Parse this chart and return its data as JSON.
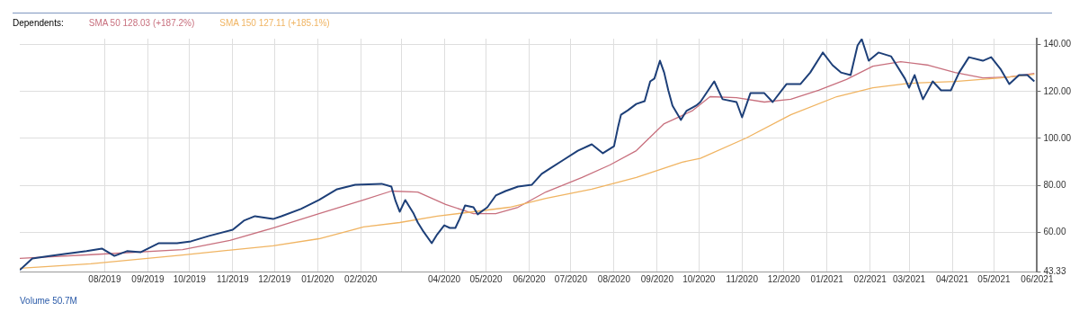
{
  "chart_data": {
    "type": "line",
    "legend": "top left",
    "grid": true,
    "marker": "none",
    "line_style": "solid",
    "xlim": [
      "2019-06-01",
      "2021-06-01"
    ],
    "xticks": [
      {
        "value": "2019-08-01",
        "label": "08/2019"
      },
      {
        "value": "2019-09-01",
        "label": "09/2019"
      },
      {
        "value": "2019-10-01",
        "label": "10/2019"
      },
      {
        "value": "2019-11-01",
        "label": "11/2019"
      },
      {
        "value": "2019-12-01",
        "label": "12/2019"
      },
      {
        "value": "2020-01-01",
        "label": "01/2020"
      },
      {
        "value": "2020-02-01",
        "label": "02/2020"
      },
      {
        "value": "2020-03-01",
        "label": null
      },
      {
        "value": "2020-04-01",
        "label": "04/2020"
      },
      {
        "value": "2020-05-01",
        "label": "05/2020"
      },
      {
        "value": "2020-06-01",
        "label": "06/2020"
      },
      {
        "value": "2020-07-01",
        "label": "07/2020"
      },
      {
        "value": "2020-08-01",
        "label": "08/2020"
      },
      {
        "value": "2020-09-01",
        "label": "09/2020"
      },
      {
        "value": "2020-10-01",
        "label": "10/2020"
      },
      {
        "value": "2020-11-01",
        "label": "11/2020"
      },
      {
        "value": "2020-12-01",
        "label": "12/2020"
      },
      {
        "value": "2021-01-01",
        "label": "01/2021"
      },
      {
        "value": "2021-02-01",
        "label": "02/2021"
      },
      {
        "value": "2021-03-01",
        "label": "03/2021"
      },
      {
        "value": "2021-04-01",
        "label": "04/2021"
      },
      {
        "value": "2021-05-01",
        "label": "05/2021"
      },
      {
        "value": "2021-06-01",
        "label": "06/2021"
      }
    ],
    "ylim": [
      43.33,
      142.5
    ],
    "yticks": [
      43.33,
      {
        "value": 60,
        "label": "60.00"
      },
      {
        "value": 80,
        "label": "80.00"
      },
      {
        "value": 100,
        "label": "100.00"
      },
      {
        "value": 120,
        "label": "120.00"
      },
      {
        "value": 140,
        "label": "140.00"
      }
    ],
    "annotations": [
      "Dependents:",
      "Volume 50.7M"
    ],
    "series": [
      {
        "name": "SMA 50 128.03 (+187.2%)",
        "color": "#c8707e",
        "x": [
          "2019-06-01",
          "2019-07-22",
          "2019-09-26",
          "2019-10-30",
          "2019-11-30",
          "2020-01-02",
          "2020-02-03",
          "2020-02-23",
          "2020-03-13",
          "2020-04-02",
          "2020-04-22",
          "2020-05-08",
          "2020-05-24",
          "2020-06-13",
          "2020-07-09",
          "2020-07-29",
          "2020-08-17",
          "2020-09-06",
          "2020-09-26",
          "2020-10-09",
          "2020-10-28",
          "2020-11-17",
          "2020-12-06",
          "2020-12-26",
          "2021-01-15",
          "2021-02-03",
          "2021-02-23",
          "2021-03-15",
          "2021-04-03",
          "2021-04-23",
          "2021-05-12",
          "2021-05-30"
        ],
        "values": [
          48.9,
          50.5,
          52.7,
          56.6,
          61.9,
          68,
          73.8,
          77.6,
          77.2,
          71.9,
          68,
          68,
          70.7,
          77.2,
          83.4,
          88.7,
          94.8,
          106.3,
          111.7,
          117.8,
          117.4,
          115.5,
          116.7,
          120.5,
          125.1,
          130.8,
          132.7,
          131.2,
          128.1,
          125.8,
          126.2,
          127.7
        ]
      },
      {
        "name": "SMA 150 127.11 (+185.1%)",
        "color": "#f0b462",
        "x": [
          "2019-06-01",
          "2019-07-22",
          "2019-09-26",
          "2019-11-30",
          "2020-01-02",
          "2020-02-03",
          "2020-02-29",
          "2020-03-27",
          "2020-04-22",
          "2020-05-18",
          "2020-06-13",
          "2020-07-16",
          "2020-08-17",
          "2020-09-19",
          "2020-10-02",
          "2020-11-04",
          "2020-12-06",
          "2021-01-08",
          "2021-02-03",
          "2021-03-01",
          "2021-04-03",
          "2021-05-06",
          "2021-05-30"
        ],
        "values": [
          44.7,
          46.6,
          50.4,
          54.3,
          57.3,
          62.3,
          64.2,
          66.9,
          68.8,
          70.7,
          74.5,
          78.4,
          83.4,
          89.9,
          91.5,
          100.2,
          110.1,
          117.8,
          121.6,
          123.5,
          124.3,
          125.8,
          127.3
        ]
      },
      {
        "color": "#1d3f78",
        "x": [
          "2019-06-01",
          "2019-06-10",
          "2019-06-20",
          "2019-07-03",
          "2019-07-19",
          "2019-07-30",
          "2019-08-08",
          "2019-08-17",
          "2019-08-27",
          "2019-09-09",
          "2019-09-22",
          "2019-10-02",
          "2019-10-15",
          "2019-11-01",
          "2019-11-09",
          "2019-11-17",
          "2019-11-30",
          "2019-12-06",
          "2019-12-20",
          "2020-01-02",
          "2020-01-15",
          "2020-01-28",
          "2020-02-16",
          "2020-02-23",
          "2020-02-26",
          "2020-02-29",
          "2020-03-04",
          "2020-03-10",
          "2020-03-13",
          "2020-03-17",
          "2020-03-23",
          "2020-03-27",
          "2020-04-01",
          "2020-04-05",
          "2020-04-09",
          "2020-04-12",
          "2020-04-16",
          "2020-04-22",
          "2020-04-25",
          "2020-05-02",
          "2020-05-08",
          "2020-05-15",
          "2020-05-24",
          "2020-06-03",
          "2020-06-10",
          "2020-06-16",
          "2020-06-26",
          "2020-07-06",
          "2020-07-16",
          "2020-07-24",
          "2020-08-01",
          "2020-08-04",
          "2020-08-06",
          "2020-08-11",
          "2020-08-17",
          "2020-08-23",
          "2020-08-27",
          "2020-08-30",
          "2020-09-03",
          "2020-09-06",
          "2020-09-09",
          "2020-09-12",
          "2020-09-18",
          "2020-09-22",
          "2020-09-29",
          "2020-10-02",
          "2020-10-12",
          "2020-10-18",
          "2020-10-28",
          "2020-11-01",
          "2020-11-07",
          "2020-11-17",
          "2020-11-23",
          "2020-12-03",
          "2020-12-13",
          "2020-12-20",
          "2020-12-29",
          "2021-01-05",
          "2021-01-11",
          "2021-01-18",
          "2021-01-23",
          "2021-01-26",
          "2021-01-31",
          "2021-02-07",
          "2021-02-16",
          "2021-02-26",
          "2021-03-01",
          "2021-03-05",
          "2021-03-08",
          "2021-03-11",
          "2021-03-18",
          "2021-03-24",
          "2021-03-31",
          "2021-04-06",
          "2021-04-13",
          "2021-04-23",
          "2021-04-29",
          "2021-05-06",
          "2021-05-12",
          "2021-05-19",
          "2021-05-25",
          "2021-05-30"
        ],
        "values": [
          44,
          48.9,
          49.7,
          50.8,
          52,
          53.1,
          50,
          52,
          51.6,
          55.4,
          55.4,
          56.2,
          58.5,
          61.1,
          65,
          66.9,
          65.7,
          66.9,
          70,
          73.8,
          78.4,
          80.3,
          80.7,
          79.5,
          73.4,
          68.8,
          73.8,
          68,
          64.2,
          60.4,
          55.4,
          59.2,
          63,
          61.9,
          61.9,
          65.7,
          71.5,
          70.7,
          67.7,
          70.7,
          75.7,
          77.6,
          79.5,
          80.3,
          84.9,
          87.2,
          91,
          94.8,
          97.5,
          93.7,
          96.7,
          105.2,
          110.1,
          112,
          114.7,
          115.9,
          124.3,
          125.5,
          133.1,
          128.1,
          120.5,
          114,
          107.9,
          111.7,
          114,
          115.5,
          124.3,
          116.7,
          115.5,
          109,
          119.3,
          119.3,
          115.5,
          123.2,
          123.2,
          128.1,
          136.6,
          131.2,
          128.1,
          127,
          139.6,
          142.3,
          133.1,
          136.6,
          135,
          125.5,
          121.6,
          127,
          121.6,
          116.7,
          124.3,
          120.5,
          120.5,
          128.1,
          134.6,
          133.1,
          134.6,
          129.3,
          123.2,
          127,
          127,
          124.3
        ]
      }
    ]
  }
}
